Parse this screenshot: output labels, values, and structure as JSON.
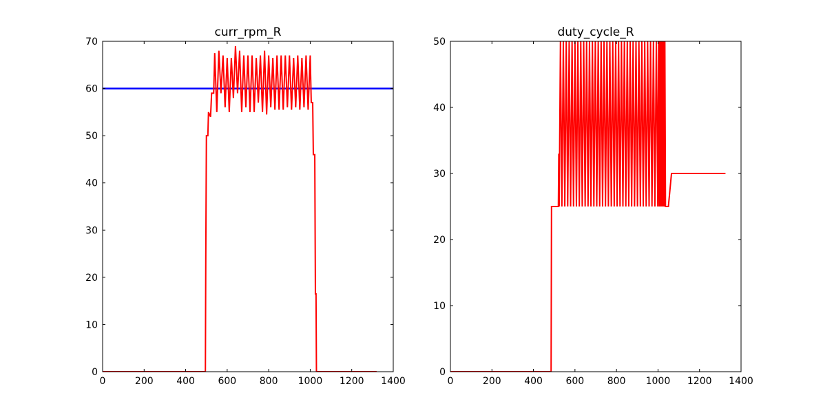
{
  "chart_data": [
    {
      "type": "line",
      "title": "curr_rpm_R",
      "xlim": [
        0,
        1400
      ],
      "ylim": [
        0,
        70
      ],
      "xticks": [
        0,
        200,
        400,
        600,
        800,
        1000,
        1200,
        1400
      ],
      "yticks": [
        0,
        10,
        20,
        30,
        40,
        50,
        60,
        70
      ],
      "series": [
        {
          "color": "#0000ff",
          "x": [
            0,
            1400
          ],
          "values": [
            60,
            60
          ]
        },
        {
          "color": "#ff0000",
          "x": [
            0,
            495,
            497,
            500,
            507,
            510,
            520,
            525,
            535,
            540,
            550,
            560,
            570,
            580,
            590,
            600,
            610,
            620,
            630,
            640,
            650,
            660,
            670,
            680,
            690,
            700,
            710,
            720,
            730,
            740,
            750,
            760,
            770,
            780,
            790,
            800,
            810,
            820,
            830,
            840,
            850,
            860,
            870,
            880,
            890,
            900,
            910,
            920,
            930,
            940,
            950,
            960,
            970,
            980,
            990,
            1000,
            1005,
            1012,
            1015,
            1022,
            1025,
            1028,
            1030,
            1320
          ],
          "values": [
            0,
            0,
            24,
            50,
            50,
            55,
            54,
            59,
            59,
            67.5,
            55,
            68,
            59,
            67,
            56,
            66.5,
            55,
            66.5,
            58,
            69,
            59,
            68,
            55,
            67,
            56,
            67,
            55,
            67,
            55,
            66.5,
            57,
            67,
            55,
            68,
            54.5,
            67,
            56,
            66.5,
            55.5,
            67,
            55.5,
            67,
            55.5,
            67,
            56,
            67,
            55.5,
            66.5,
            56,
            67,
            55.5,
            66.5,
            56,
            67,
            55.5,
            67,
            57,
            57,
            46,
            46,
            16.5,
            16.5,
            0,
            0
          ]
        }
      ]
    },
    {
      "type": "line",
      "title": "duty_cycle_R",
      "xlim": [
        0,
        1400
      ],
      "ylim": [
        0,
        50
      ],
      "xticks": [
        0,
        200,
        400,
        600,
        800,
        1000,
        1200,
        1400
      ],
      "yticks": [
        0,
        10,
        20,
        30,
        40,
        50
      ],
      "series": [
        {
          "color": "#ff0000",
          "x": [
            0,
            485,
            487,
            520,
            522,
            524,
            530,
            537,
            544,
            551,
            558,
            565,
            572,
            579,
            586,
            593,
            600,
            607,
            614,
            621,
            628,
            635,
            642,
            649,
            656,
            663,
            670,
            677,
            684,
            691,
            698,
            705,
            712,
            719,
            726,
            733,
            740,
            747,
            754,
            761,
            768,
            775,
            782,
            789,
            796,
            803,
            810,
            817,
            824,
            831,
            838,
            845,
            852,
            859,
            866,
            873,
            880,
            887,
            894,
            901,
            908,
            915,
            922,
            929,
            936,
            943,
            950,
            957,
            964,
            971,
            978,
            985,
            992,
            999,
            1003,
            1006,
            1009,
            1012,
            1015,
            1018,
            1021,
            1024,
            1027,
            1030,
            1033,
            1036,
            1050,
            1065,
            1325
          ],
          "values": [
            0,
            0,
            25,
            25,
            33,
            25,
            50,
            25,
            50,
            25,
            50,
            25,
            50,
            25,
            50,
            25,
            50,
            25,
            50,
            25,
            50,
            25,
            50,
            25,
            50,
            25,
            50,
            25,
            50,
            25,
            50,
            25,
            50,
            25,
            50,
            25,
            50,
            25,
            50,
            25,
            50,
            25,
            50,
            25,
            50,
            25,
            50,
            25,
            50,
            25,
            50,
            25,
            50,
            25,
            50,
            25,
            50,
            25,
            50,
            25,
            50,
            25,
            50,
            25,
            50,
            25,
            50,
            25,
            50,
            25,
            50,
            25,
            50,
            25,
            50,
            25,
            50,
            25,
            50,
            25,
            50,
            25,
            50,
            25,
            50,
            25,
            25,
            30,
            30
          ]
        }
      ]
    }
  ]
}
